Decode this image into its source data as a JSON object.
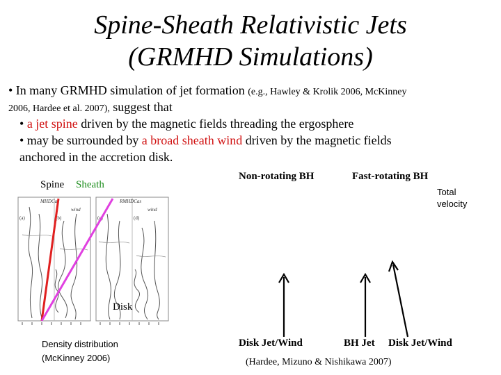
{
  "title": {
    "line1": "Spine-Sheath Relativistic Jets",
    "line2": "(GRMHD Simulations)"
  },
  "bullets": {
    "b1_text": "• In many GRMHD simulation of jet formation ",
    "b1_ref1": "(e.g., Hawley & Krolik 2006, McKinney",
    "b1_ref2": "2006, Hardee et al. 2007),",
    "b1_tail": " suggest that",
    "b2_pre": "• ",
    "b2_red": "a jet spine",
    "b2_post": " driven by the magnetic fields threading the ergosphere",
    "b3_pre": "• may be surrounded by ",
    "b3_red": "a broad sheath wind",
    "b3_post": " driven by the magnetic fields",
    "b3_line2": "anchored in the accretion disk."
  },
  "figure": {
    "spine_label": "Spine",
    "sheath_label": "Sheath",
    "disk_label": "Disk",
    "caption_line1": "Density distribution",
    "caption_line2": "(McKinney 2006)",
    "panel_a": "(a)",
    "panel_b": "(b)",
    "panel_c": "(c)",
    "panel_d": "(d)",
    "tag_left": "MHDCas",
    "tag_right": "RMHDCas",
    "word_wind_left": "wind",
    "word_wind_right": "wind",
    "spine_color": "#e02020",
    "sheath_color": "#e040e0"
  },
  "right_panel": {
    "nonrot_label": "Non-rotating BH",
    "fastrot_label": "Fast-rotating BH",
    "total_velocity_line1": "Total",
    "total_velocity_line2": "velocity",
    "disk_jet_wind_label": "Disk Jet/Wind",
    "bh_jet_label": "BH Jet",
    "disk_jet_wind_label2": "Disk Jet/Wind",
    "citation": "(Hardee, Mizuno & Nishikawa 2007)"
  }
}
